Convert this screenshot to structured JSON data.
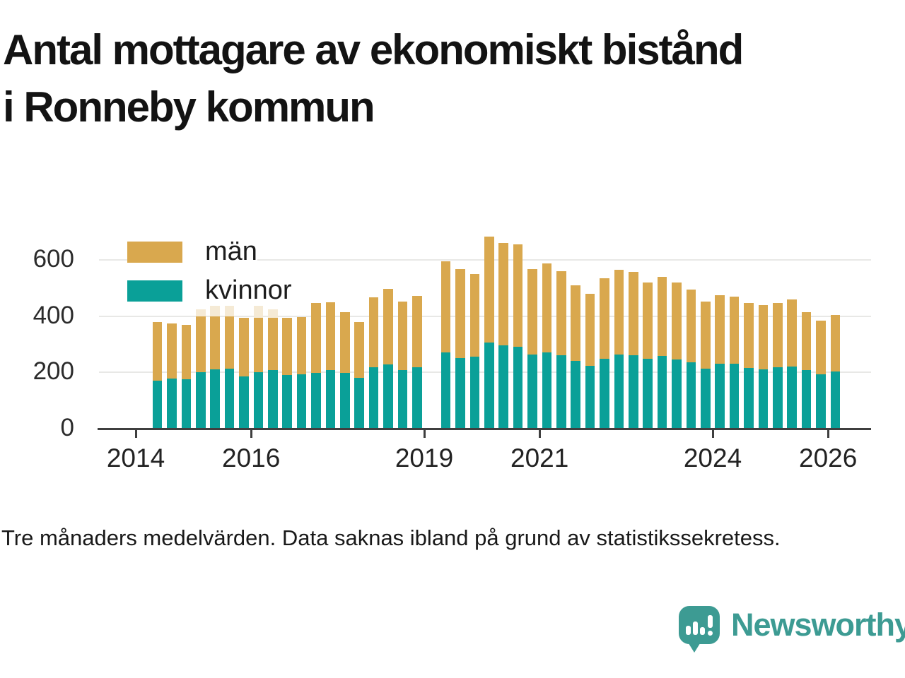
{
  "title": {
    "line1": "Antal mottagare av ekonomiskt bistånd",
    "line2": "i Ronneby kommun"
  },
  "legend": [
    {
      "label": "män",
      "color": "#d9a84e"
    },
    {
      "label": "kvinnor",
      "color": "#0aa098"
    }
  ],
  "footnote": "Tre månaders medelvärden. Data saknas ibland på grund av statistikssekretess.",
  "logo": {
    "text": "Newsworthy",
    "color": "#3d9b93",
    "icon": "bar-chart-speech-bubble-icon"
  },
  "colors": {
    "men": "#d9a84e",
    "women": "#0aa098",
    "light_top": "#f5ead5",
    "grid": "#e8e8e6",
    "axis": "#3f3f3f"
  },
  "y_axis": {
    "ticks": [
      0,
      200,
      400,
      600
    ],
    "gridlines": true
  },
  "x_axis": {
    "ticks": [
      2014,
      2016,
      2019,
      2021,
      2024,
      2026
    ]
  },
  "chart_data": {
    "type": "bar",
    "stacked": true,
    "title": "Antal mottagare av ekonomiskt bistånd i Ronneby kommun",
    "xlabel": "",
    "ylabel": "",
    "ylim": [
      0,
      700
    ],
    "x_range": [
      "2014-Q2",
      "2026-Q1"
    ],
    "frequency": "quarterly (tre månaders medelvärden)",
    "missing": [
      "2019-Q1"
    ],
    "legend_position": "top-left inside plot",
    "categories": [
      "2014-Q2",
      "2014-Q3",
      "2014-Q4",
      "2015-Q1",
      "2015-Q2",
      "2015-Q3",
      "2015-Q4",
      "2016-Q1",
      "2016-Q2",
      "2016-Q3",
      "2016-Q4",
      "2017-Q1",
      "2017-Q2",
      "2017-Q3",
      "2017-Q4",
      "2018-Q1",
      "2018-Q2",
      "2018-Q3",
      "2018-Q4",
      "2019-Q1",
      "2019-Q2",
      "2019-Q3",
      "2019-Q4",
      "2020-Q1",
      "2020-Q2",
      "2020-Q3",
      "2020-Q4",
      "2021-Q1",
      "2021-Q2",
      "2021-Q3",
      "2021-Q4",
      "2022-Q1",
      "2022-Q2",
      "2022-Q3",
      "2022-Q4",
      "2023-Q1",
      "2023-Q2",
      "2023-Q3",
      "2023-Q4",
      "2024-Q1",
      "2024-Q2",
      "2024-Q3",
      "2024-Q4",
      "2025-Q1",
      "2025-Q2",
      "2025-Q3",
      "2025-Q4",
      "2026-Q1"
    ],
    "series": [
      {
        "name": "kvinnor",
        "color": "#0aa098",
        "values": [
          170,
          178,
          175,
          200,
          210,
          213,
          186,
          201,
          208,
          191,
          194,
          199,
          209,
          198,
          180,
          219,
          228,
          209,
          219,
          null,
          272,
          252,
          257,
          307,
          295,
          290,
          263,
          272,
          260,
          242,
          223,
          248,
          263,
          261,
          248,
          258,
          247,
          236,
          213,
          230,
          230,
          217,
          212,
          218,
          220,
          207,
          192,
          203
        ]
      },
      {
        "name": "män",
        "color": "#d9a84e",
        "values": [
          210,
          195,
          195,
          198,
          188,
          185,
          207,
          194,
          187,
          203,
          203,
          247,
          240,
          216,
          198,
          249,
          269,
          243,
          253,
          null,
          323,
          315,
          293,
          375,
          365,
          365,
          304,
          316,
          300,
          268,
          257,
          287,
          302,
          297,
          272,
          282,
          273,
          259,
          239,
          245,
          240,
          230,
          226,
          229,
          240,
          208,
          193,
          202
        ]
      },
      {
        "name": "light_top_unlabeled",
        "color": "#f5ead5",
        "values": [
          0,
          0,
          0,
          25,
          50,
          45,
          0,
          45,
          30,
          0,
          0,
          0,
          0,
          0,
          0,
          0,
          0,
          0,
          0,
          null,
          0,
          0,
          0,
          0,
          0,
          0,
          0,
          0,
          0,
          0,
          0,
          0,
          0,
          0,
          0,
          0,
          0,
          0,
          0,
          0,
          0,
          0,
          0,
          0,
          0,
          0,
          0,
          0
        ]
      }
    ]
  }
}
